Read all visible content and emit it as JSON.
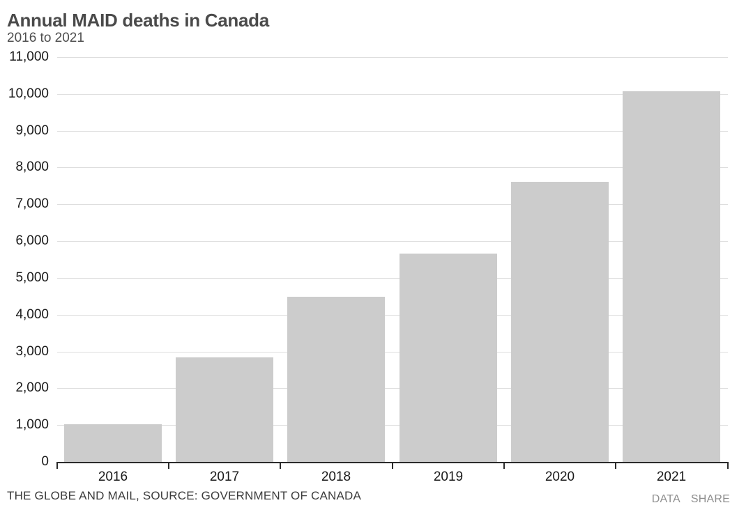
{
  "header": {
    "title": "Annual MAID deaths in Canada",
    "subtitle": "2016 to 2021"
  },
  "chart_data": {
    "type": "bar",
    "title": "Annual MAID deaths in Canada",
    "subtitle": "2016 to 2021",
    "categories": [
      "2016",
      "2017",
      "2018",
      "2019",
      "2020",
      "2021"
    ],
    "values": [
      1018,
      2838,
      4480,
      5661,
      7603,
      10064
    ],
    "xlabel": "",
    "ylabel": "",
    "ylim": [
      0,
      11000
    ],
    "ytick_interval": 1000,
    "ytick_labels": [
      "0",
      "1,000",
      "2,000",
      "3,000",
      "4,000",
      "5,000",
      "6,000",
      "7,000",
      "8,000",
      "9,000",
      "10,000",
      "11,000"
    ],
    "grid": true,
    "legend": "none",
    "bar_color": "#cccccc",
    "gridline_color": "#dedede",
    "axis_color": "#2b2b2b"
  },
  "footer": {
    "source": "THE GLOBE AND MAIL, SOURCE: GOVERNMENT OF CANADA",
    "actions": [
      {
        "label": "DATA"
      },
      {
        "label": "SHARE"
      }
    ]
  }
}
